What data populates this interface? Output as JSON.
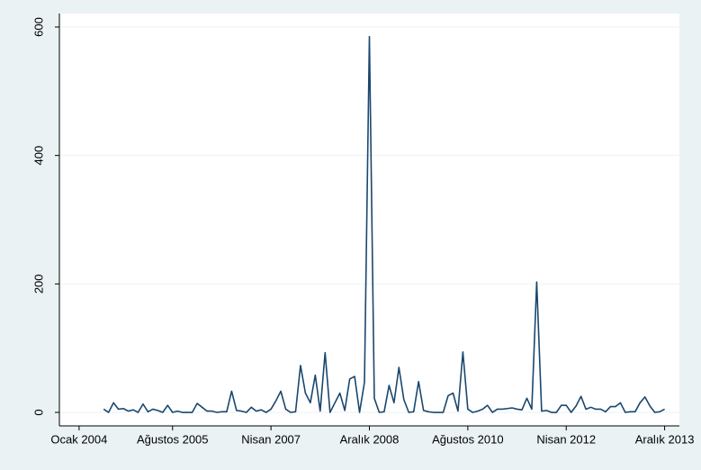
{
  "chart_data": {
    "type": "line",
    "x": [
      "2004-06",
      "2004-07",
      "2004-08",
      "2004-09",
      "2004-10",
      "2004-11",
      "2004-12",
      "2005-01",
      "2005-02",
      "2005-03",
      "2005-04",
      "2005-05",
      "2005-06",
      "2005-07",
      "2005-08",
      "2005-09",
      "2005-10",
      "2005-11",
      "2005-12",
      "2006-01",
      "2006-02",
      "2006-03",
      "2006-04",
      "2006-05",
      "2006-06",
      "2006-07",
      "2006-08",
      "2006-09",
      "2006-10",
      "2006-11",
      "2006-12",
      "2007-01",
      "2007-02",
      "2007-03",
      "2007-04",
      "2007-05",
      "2007-06",
      "2007-07",
      "2007-08",
      "2007-09",
      "2007-10",
      "2007-11",
      "2007-12",
      "2008-01",
      "2008-02",
      "2008-03",
      "2008-04",
      "2008-05",
      "2008-06",
      "2008-07",
      "2008-08",
      "2008-09",
      "2008-10",
      "2008-11",
      "2008-12",
      "2009-01",
      "2009-02",
      "2009-03",
      "2009-04",
      "2009-05",
      "2009-06",
      "2009-07",
      "2009-08",
      "2009-09",
      "2009-10",
      "2009-11",
      "2009-12",
      "2010-01",
      "2010-02",
      "2010-03",
      "2010-04",
      "2010-05",
      "2010-06",
      "2010-07",
      "2010-08",
      "2010-09",
      "2010-10",
      "2010-11",
      "2010-12",
      "2011-01",
      "2011-02",
      "2011-03",
      "2011-04",
      "2011-05",
      "2011-06",
      "2011-07",
      "2011-08",
      "2011-09",
      "2011-10",
      "2011-11",
      "2011-12",
      "2012-01",
      "2012-02",
      "2012-03",
      "2012-04",
      "2012-05",
      "2012-06",
      "2012-07",
      "2012-08",
      "2012-09",
      "2012-10",
      "2012-11",
      "2012-12",
      "2013-01",
      "2013-02",
      "2013-03",
      "2013-04",
      "2013-05",
      "2013-06",
      "2013-07",
      "2013-08",
      "2013-09",
      "2013-10",
      "2013-11",
      "2013-12"
    ],
    "series": [
      {
        "color": "#1a476f",
        "values": [
          5,
          0,
          15,
          5,
          6,
          2,
          4,
          0,
          13,
          1,
          5,
          3,
          0,
          11,
          0,
          2,
          0,
          0,
          0,
          14,
          8,
          2,
          2,
          0,
          1,
          1,
          33,
          3,
          2,
          0,
          8,
          2,
          4,
          0,
          5,
          18,
          33,
          5,
          0,
          1,
          73,
          30,
          15,
          58,
          2,
          93,
          0,
          15,
          30,
          3,
          52,
          56,
          0,
          47,
          585,
          22,
          0,
          1,
          42,
          15,
          70,
          20,
          0,
          1,
          48,
          3,
          1,
          0,
          0,
          0,
          26,
          30,
          2,
          94,
          5,
          0,
          2,
          5,
          11,
          0,
          5,
          5,
          6,
          7,
          5,
          4,
          22,
          5,
          203,
          2,
          3,
          0,
          0,
          11,
          11,
          0,
          10,
          25,
          5,
          8,
          5,
          5,
          1,
          9,
          9,
          15,
          0,
          1,
          1,
          15,
          24,
          10,
          0,
          1,
          5
        ]
      }
    ],
    "xlim": [
      "2003-09",
      "2014-03"
    ],
    "xticks": [
      {
        "value": "2004-01",
        "label": "Ocak 2004"
      },
      {
        "value": "2005-08",
        "label": "Ağustos 2005"
      },
      {
        "value": "2007-04",
        "label": "Nisan 2007"
      },
      {
        "value": "2008-12",
        "label": "Aralık 2008"
      },
      {
        "value": "2010-08",
        "label": "Ağustos 2010"
      },
      {
        "value": "2012-04",
        "label": "Nisan 2012"
      },
      {
        "value": "2013-12",
        "label": "Aralık 2013"
      }
    ],
    "ylim": [
      -21,
      621
    ],
    "yticks": [
      0,
      200,
      400,
      600
    ],
    "grid": true
  }
}
